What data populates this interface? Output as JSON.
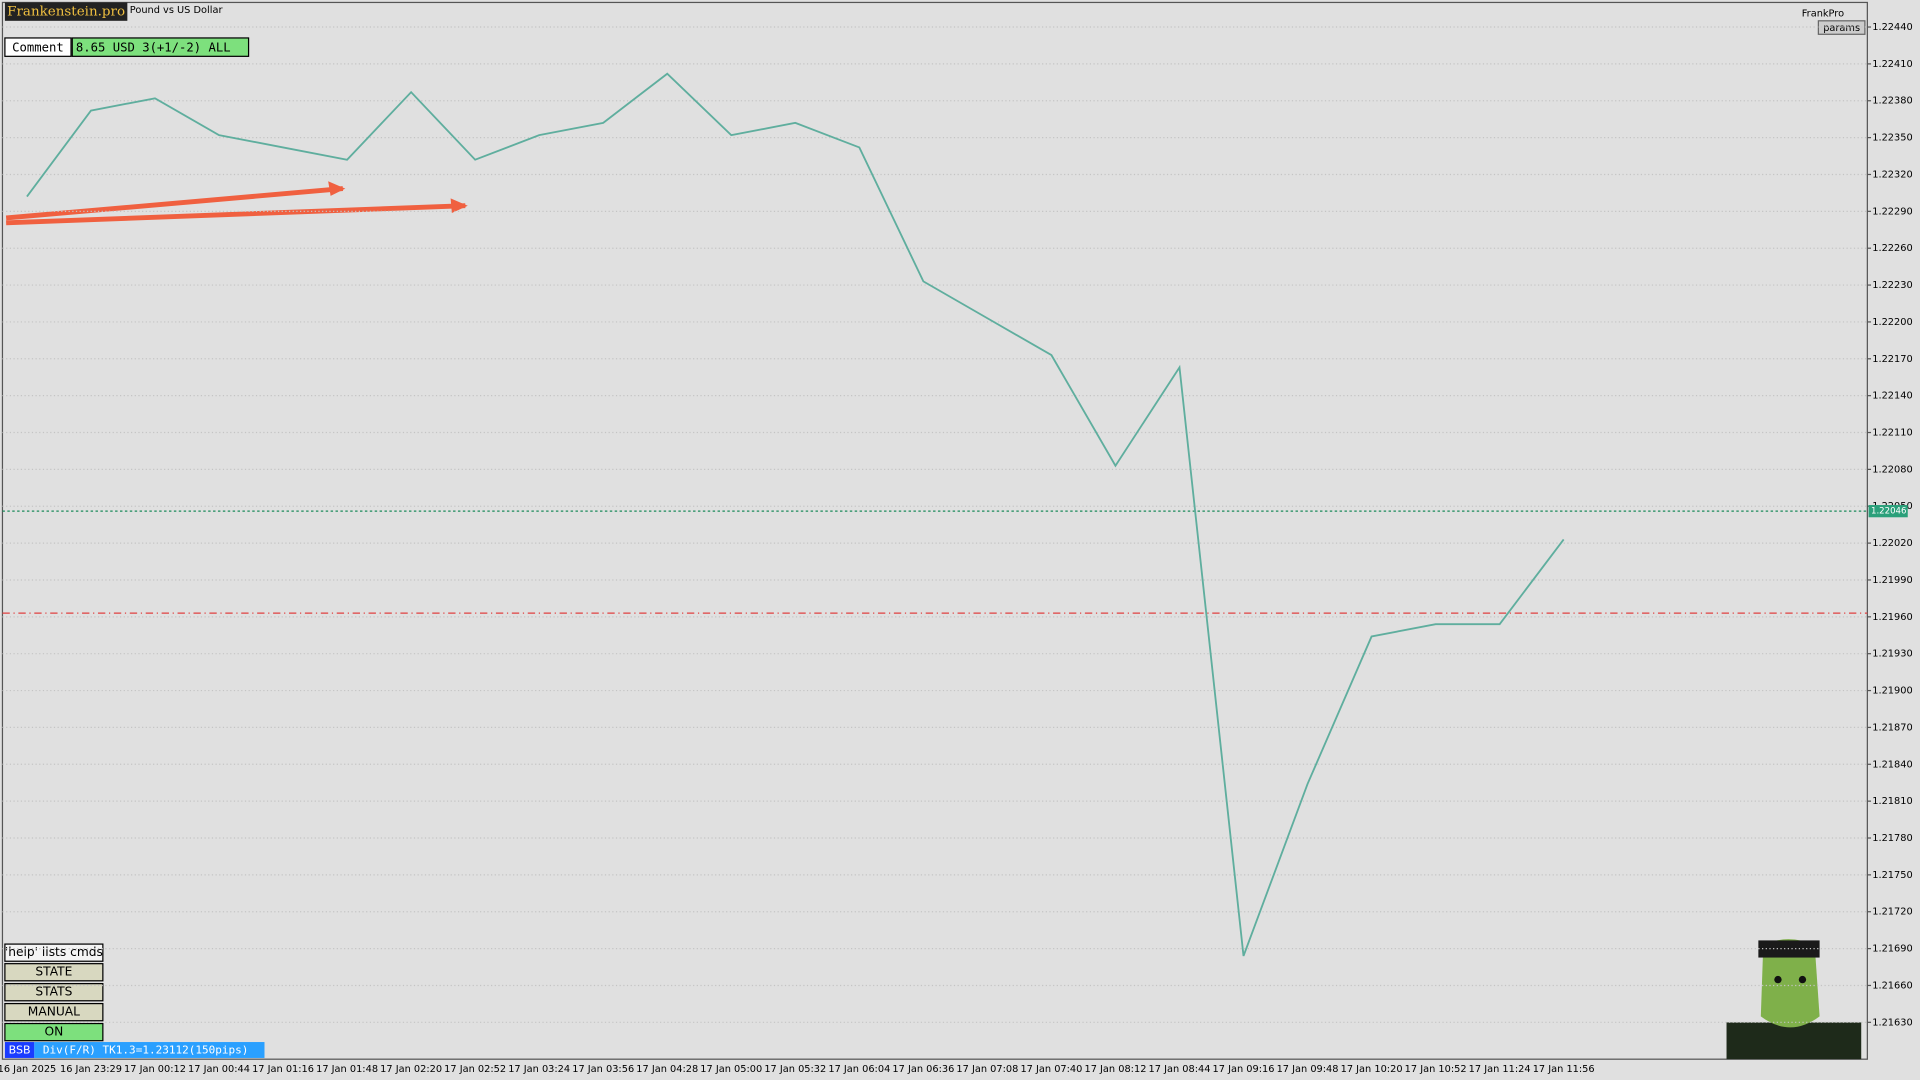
{
  "header": {
    "brand": "Frankenstein.pro",
    "symbol": "Pound vs US Dollar",
    "comment_label": "Comment",
    "comment_value": "8.65 USD 3(+1/-2) ALL",
    "user": "FrankPro",
    "params": "params"
  },
  "panel": {
    "help": "'help' lists cmds",
    "buttons": [
      "STATE",
      "STATS",
      "MANUAL",
      "ON"
    ],
    "status_tag": "BSB",
    "status_text": "Div(F/R) TK1.3=1.23112(150pips)"
  },
  "chart_data": {
    "type": "line",
    "categories": [
      "16 Jan 2025",
      "16 Jan 23:29",
      "17 Jan 00:12",
      "17 Jan 00:44",
      "17 Jan 01:16",
      "17 Jan 01:48",
      "17 Jan 02:20",
      "17 Jan 02:52",
      "17 Jan 03:24",
      "17 Jan 03:56",
      "17 Jan 04:28",
      "17 Jan 05:00",
      "17 Jan 05:32",
      "17 Jan 06:04",
      "17 Jan 06:36",
      "17 Jan 07:08",
      "17 Jan 07:40",
      "17 Jan 08:12",
      "17 Jan 08:44",
      "17 Jan 09:16",
      "17 Jan 09:48",
      "17 Jan 10:20",
      "17 Jan 10:52",
      "17 Jan 11:24",
      "17 Jan 11:56"
    ],
    "values": [
      1.22302,
      1.22372,
      1.22382,
      1.22352,
      1.22342,
      1.22332,
      1.22387,
      1.22332,
      1.22352,
      1.22362,
      1.22402,
      1.22352,
      1.22362,
      1.22342,
      1.22233,
      1.22203,
      1.22173,
      1.22083,
      1.22163,
      1.21684,
      1.21824,
      1.21944,
      1.21954,
      1.21954,
      1.22023
    ],
    "color": "#5fae9e",
    "current_price": 1.22046,
    "stop_level": 1.21963,
    "ylim": [
      1.216,
      1.2246
    ],
    "yticks": [
      {
        "value": 1.2244,
        "label": "1.22440"
      },
      {
        "value": 1.2241,
        "label": "1.22410"
      },
      {
        "value": 1.2238,
        "label": "1.22380"
      },
      {
        "value": 1.2235,
        "label": "1.22350"
      },
      {
        "value": 1.2232,
        "label": "1.22320"
      },
      {
        "value": 1.2229,
        "label": "1.22290"
      },
      {
        "value": 1.2226,
        "label": "1.22260"
      },
      {
        "value": 1.2223,
        "label": "1.22230"
      },
      {
        "value": 1.222,
        "label": "1.22200"
      },
      {
        "value": 1.2217,
        "label": "1.22170"
      },
      {
        "value": 1.2214,
        "label": "1.22140"
      },
      {
        "value": 1.2211,
        "label": "1.22110"
      },
      {
        "value": 1.2208,
        "label": "1.22080"
      },
      {
        "value": 1.2205,
        "label": "1.22050"
      },
      {
        "value": 1.2202,
        "label": "1.22020"
      },
      {
        "value": 1.2199,
        "label": "1.21990"
      },
      {
        "value": 1.2196,
        "label": "1.21960"
      },
      {
        "value": 1.2193,
        "label": "1.21930"
      },
      {
        "value": 1.219,
        "label": "1.21900"
      },
      {
        "value": 1.2187,
        "label": "1.21870"
      },
      {
        "value": 1.2184,
        "label": "1.21840"
      },
      {
        "value": 1.2181,
        "label": "1.21810"
      },
      {
        "value": 1.2178,
        "label": "1.21780"
      },
      {
        "value": 1.2175,
        "label": "1.21750"
      },
      {
        "value": 1.2172,
        "label": "1.21720"
      },
      {
        "value": 1.2169,
        "label": "1.21690"
      },
      {
        "value": 1.2166,
        "label": "1.21660"
      },
      {
        "value": 1.2163,
        "label": "1.21630"
      }
    ],
    "grid": true
  }
}
